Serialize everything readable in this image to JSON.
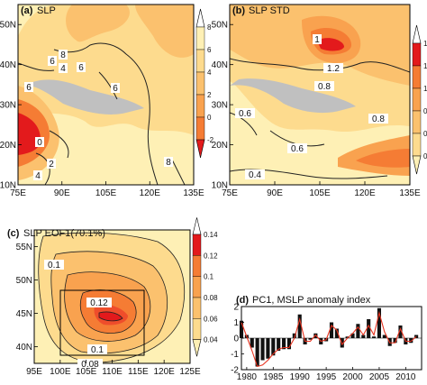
{
  "figure": {
    "panels": [
      {
        "tag": "(a)",
        "title": "SLP"
      },
      {
        "tag": "(b)",
        "title": "SLP  STD"
      },
      {
        "tag": "(c)",
        "title": "SLP  EOF1(70.1%)"
      },
      {
        "tag": "(d)",
        "title": "PC1, MSLP anomaly index"
      }
    ]
  },
  "colors": {
    "scale": [
      "#e31a1c",
      "#ef4d2b",
      "#f57c34",
      "#f9a24f",
      "#fbc16e",
      "#fddb8e",
      "#fef0b5"
    ],
    "land": "#c0c0c0",
    "contour": "#222222",
    "bar": "#111111",
    "line": "#e8331f"
  },
  "chart_data": [
    {
      "id": "a",
      "type": "contour-map",
      "title": "SLP",
      "x_ticks": [
        "75E",
        "90E",
        "105E",
        "120E",
        "135E"
      ],
      "y_ticks": [
        "10N",
        "20N",
        "30N",
        "40N",
        "50N"
      ],
      "xlim": [
        75,
        135
      ],
      "ylim": [
        10,
        55
      ],
      "contour_labels": [
        "8",
        "6",
        "6",
        "6",
        "4",
        "6",
        "0",
        "2",
        "4",
        "8"
      ],
      "colorbar": {
        "ticks": [
          "8",
          "6",
          "4",
          "2",
          "0",
          "-2"
        ],
        "range": [
          -2,
          8
        ]
      }
    },
    {
      "id": "b",
      "type": "contour-map",
      "title": "SLP  STD",
      "x_ticks": [
        "75E",
        "90E",
        "105E",
        "120E",
        "135E"
      ],
      "y_ticks": [
        "10N",
        "20N",
        "30N",
        "40N",
        "50N"
      ],
      "xlim": [
        75,
        135
      ],
      "ylim": [
        10,
        55
      ],
      "contour_labels": [
        "1",
        "1.2",
        "0.8",
        "0.6",
        "0.8",
        "0.6",
        "0.4"
      ],
      "colorbar": {
        "ticks": [
          "1.4",
          "1.2",
          "1",
          "0.8",
          "0.6",
          "0.4"
        ],
        "range": [
          0.4,
          1.4
        ]
      }
    },
    {
      "id": "c",
      "type": "contour-map",
      "title": "SLP  EOF1(70.1%)",
      "x_ticks": [
        "95E",
        "100E",
        "105E",
        "110E",
        "115E",
        "120E",
        "125E"
      ],
      "y_ticks": [
        "40N",
        "45N",
        "50N",
        "55N"
      ],
      "xlim": [
        95,
        125
      ],
      "ylim": [
        37.5,
        57.5
      ],
      "contour_labels": [
        "0.1",
        "0.12",
        "0.1",
        "0.08"
      ],
      "box": {
        "lon": [
          100,
          115
        ],
        "lat": [
          40,
          50
        ]
      },
      "colorbar": {
        "ticks": [
          "0.14",
          "0.12",
          "0.1",
          "0.08",
          "0.06",
          "0.04"
        ],
        "range": [
          0.04,
          0.14
        ]
      }
    },
    {
      "id": "d",
      "type": "bar",
      "title": "PC1, MSLP anomaly index",
      "x_ticks": [
        "1980",
        "1985",
        "1990",
        "1995",
        "2000",
        "2005",
        "2010"
      ],
      "y_ticks": [
        "2",
        "1",
        "0",
        "-1",
        "-2"
      ],
      "xlim": [
        1979,
        2013
      ],
      "ylim": [
        -2,
        2
      ],
      "x": [
        1979,
        1980,
        1981,
        1982,
        1983,
        1984,
        1985,
        1986,
        1987,
        1988,
        1989,
        1990,
        1991,
        1992,
        1993,
        1994,
        1995,
        1996,
        1997,
        1998,
        1999,
        2000,
        2001,
        2002,
        2003,
        2004,
        2005,
        2006,
        2007,
        2008,
        2009,
        2010,
        2011,
        2012
      ],
      "values": [
        1.1,
        0.2,
        -0.6,
        -1.8,
        -1.4,
        -1.3,
        -1.1,
        -0.8,
        -0.7,
        -0.7,
        0.3,
        1.5,
        -0.4,
        -0.1,
        0.3,
        -0.4,
        -0.2,
        1.0,
        0.6,
        -0.6,
        0.1,
        0.3,
        0.9,
        0.2,
        1.2,
        0.1,
        1.9,
        0.2,
        -0.5,
        -0.3,
        0.8,
        -0.4,
        -0.3,
        0.2
      ],
      "series": [
        {
          "type": "line",
          "values": [
            1.0,
            0.1,
            -0.8,
            -1.8,
            -1.7,
            -1.4,
            -1.0,
            -0.7,
            -0.6,
            -0.6,
            0.0,
            1.2,
            -0.2,
            -0.2,
            0.2,
            -0.2,
            -0.1,
            0.8,
            0.5,
            -0.4,
            0.0,
            0.3,
            0.7,
            0.2,
            0.8,
            0.2,
            1.6,
            0.4,
            -0.3,
            -0.3,
            0.6,
            -0.2,
            -0.2,
            0.1
          ]
        }
      ]
    }
  ]
}
